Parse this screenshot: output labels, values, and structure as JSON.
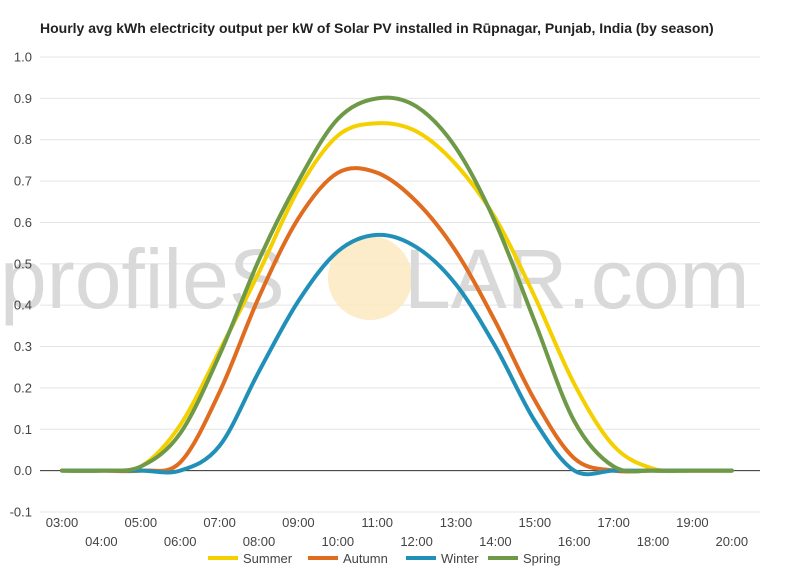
{
  "chart_data": {
    "type": "line",
    "title": "Hourly avg kWh electricity output per kW of Solar PV installed in Rūpnagar, Punjab, India (by season)",
    "xlabel": "",
    "ylabel": "",
    "x": [
      "03:00",
      "04:00",
      "05:00",
      "06:00",
      "07:00",
      "08:00",
      "09:00",
      "10:00",
      "11:00",
      "12:00",
      "13:00",
      "14:00",
      "15:00",
      "16:00",
      "17:00",
      "18:00",
      "19:00",
      "20:00"
    ],
    "ylim": [
      -0.1,
      1.0
    ],
    "yticks": [
      "-0.1",
      "0.0",
      "0.1",
      "0.2",
      "0.3",
      "0.4",
      "0.5",
      "0.6",
      "0.7",
      "0.8",
      "0.9",
      "1.0"
    ],
    "grid": true,
    "legend_position": "bottom",
    "series": [
      {
        "name": "Summer",
        "color": "#f5d000",
        "values": [
          0,
          0,
          0.01,
          0.11,
          0.29,
          0.48,
          0.68,
          0.81,
          0.84,
          0.82,
          0.74,
          0.61,
          0.42,
          0.21,
          0.06,
          0.005,
          0,
          0
        ]
      },
      {
        "name": "Autumn",
        "color": "#e06c1f",
        "values": [
          0,
          0,
          0,
          0.02,
          0.19,
          0.42,
          0.61,
          0.72,
          0.72,
          0.65,
          0.53,
          0.36,
          0.17,
          0.03,
          0,
          0,
          0,
          0
        ]
      },
      {
        "name": "Winter",
        "color": "#2190b8",
        "values": [
          0,
          0,
          0,
          0,
          0.06,
          0.24,
          0.41,
          0.53,
          0.57,
          0.54,
          0.45,
          0.3,
          0.12,
          0,
          0,
          0,
          0,
          0
        ]
      },
      {
        "name": "Spring",
        "color": "#6e9a48",
        "values": [
          0,
          0,
          0.01,
          0.09,
          0.28,
          0.51,
          0.7,
          0.85,
          0.9,
          0.88,
          0.78,
          0.6,
          0.36,
          0.12,
          0.01,
          0,
          0,
          0
        ]
      }
    ],
    "watermark": {
      "left": "profileS",
      "right": "LAR.com",
      "sun_color": "#fbe9c0"
    }
  }
}
